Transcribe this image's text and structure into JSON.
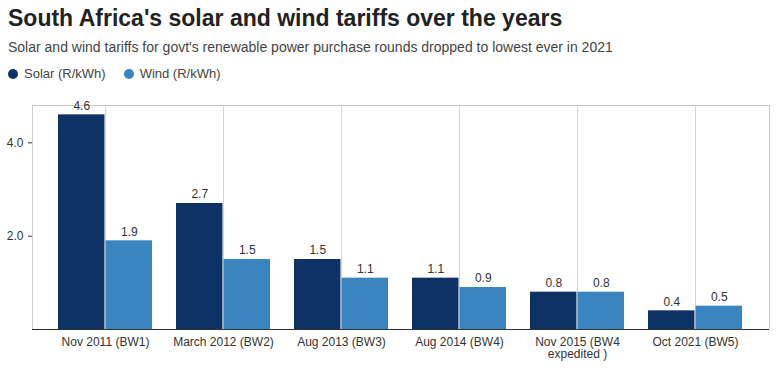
{
  "chart_data": {
    "type": "bar",
    "title": "South Africa's solar and wind tariffs over the years",
    "subtitle": "Solar and wind tariffs for govt's renewable power purchase rounds dropped to lowest ever in 2021",
    "categories": [
      "Nov 2011 (BW1)",
      "March 2012 (BW2)",
      "Aug 2013 (BW3)",
      "Aug 2014 (BW4)",
      "Nov 2015 (BW4 expedited )",
      "Oct 2021 (BW5)"
    ],
    "series": [
      {
        "name": "Solar (R/kWh)",
        "color": "#0e3266",
        "values": [
          4.6,
          2.7,
          1.5,
          1.1,
          0.8,
          0.4
        ]
      },
      {
        "name": "Wind (R/kWh)",
        "color": "#3a85c0",
        "values": [
          1.9,
          1.5,
          1.1,
          0.9,
          0.8,
          0.5
        ]
      }
    ],
    "ylim": [
      0,
      4.8
    ],
    "yticks": [
      2,
      4
    ],
    "grid": true,
    "data_labels": true,
    "legend": "top-left"
  }
}
